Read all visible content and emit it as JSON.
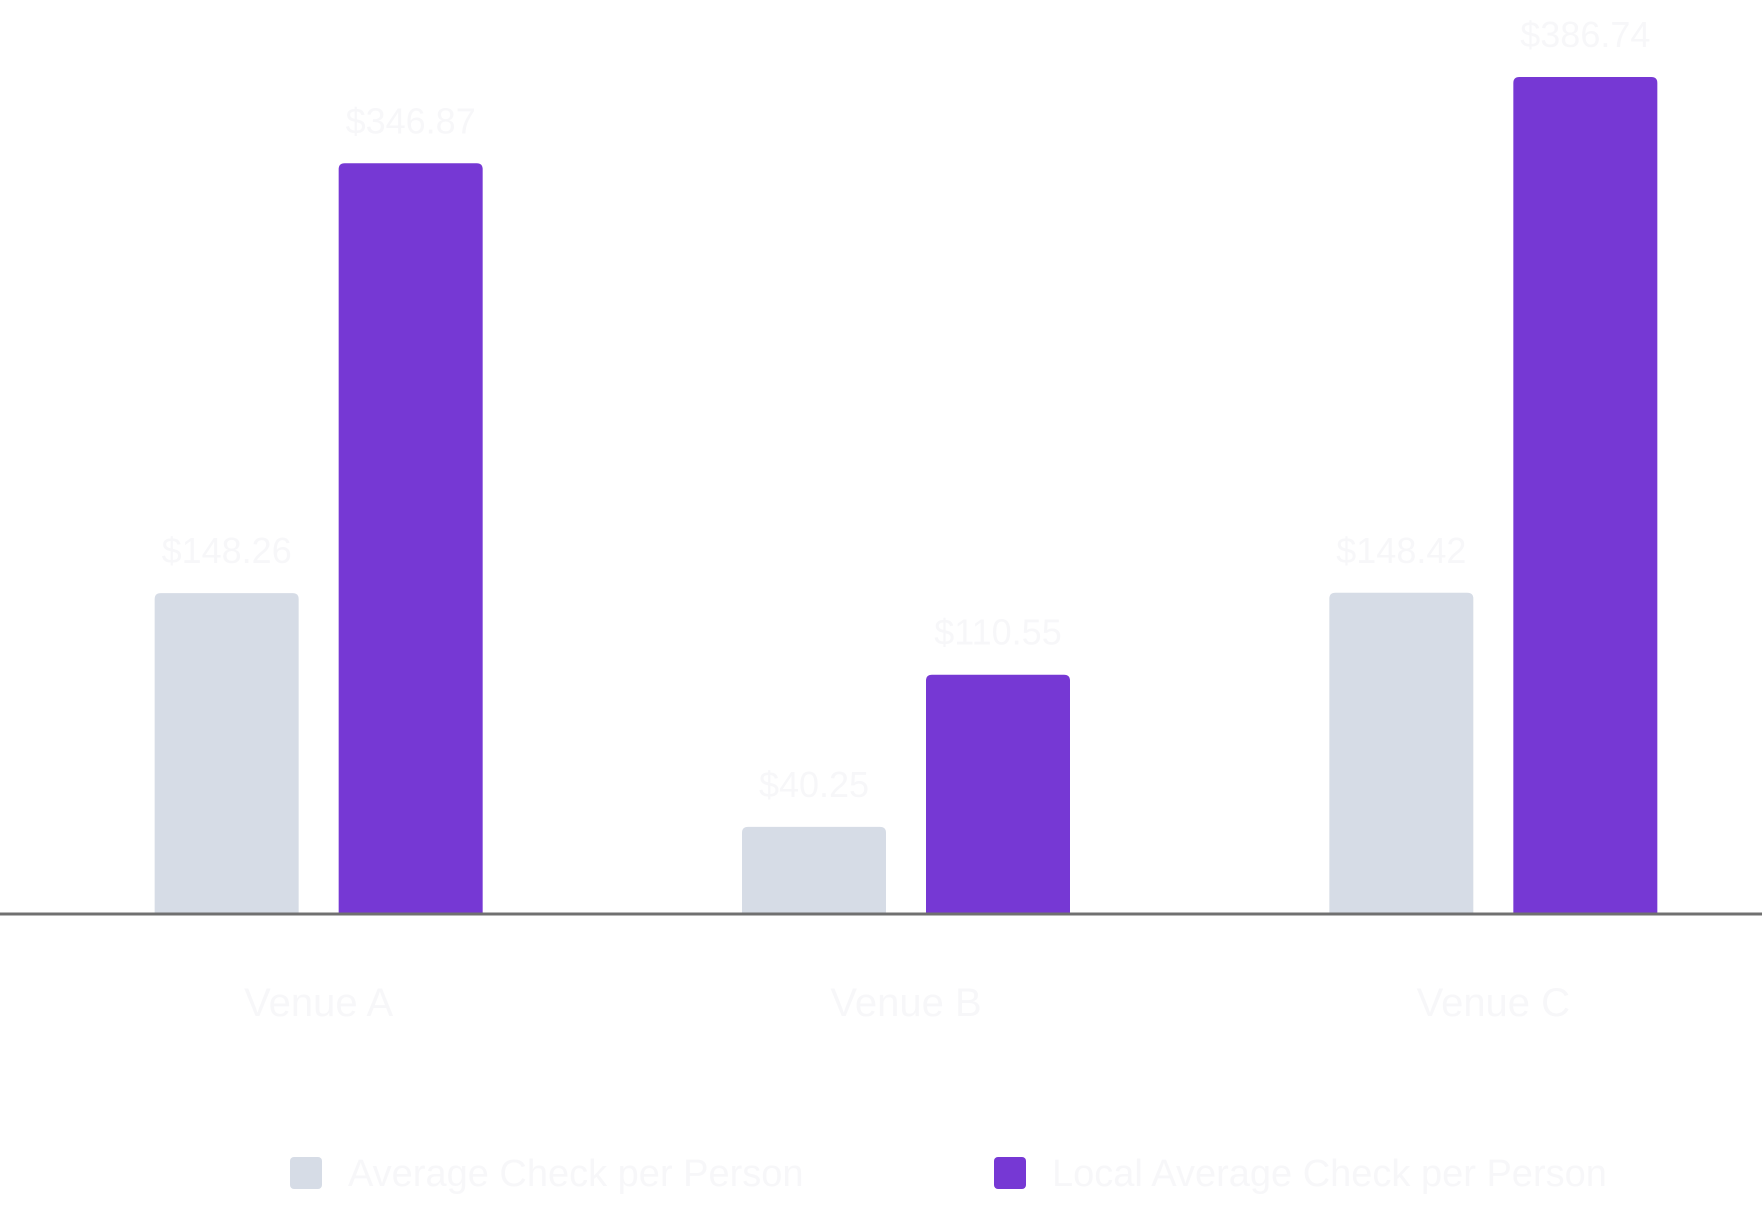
{
  "chart_data": {
    "type": "bar",
    "categories": [
      "Venue A",
      "Venue B",
      "Venue C"
    ],
    "series": [
      {
        "name": "Average Check per Person",
        "values": [
          148.26,
          40.25,
          148.42
        ],
        "labels": [
          "$148.26",
          "$40.25",
          "$148.42"
        ],
        "color": "#d6dce6"
      },
      {
        "name": "Local Average Check per Person",
        "values": [
          346.87,
          110.55,
          386.74
        ],
        "labels": [
          "$346.87",
          "$110.55",
          "$386.74"
        ],
        "color": "#7638d4"
      }
    ],
    "ylim": [
      0,
      400
    ],
    "grid": false,
    "legend": "bottom",
    "label_color": "#f7f7f9",
    "axis_color": "#707070"
  }
}
